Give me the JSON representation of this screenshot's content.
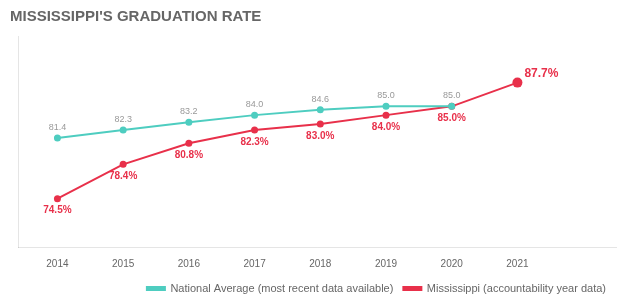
{
  "chart_data": {
    "type": "line",
    "title": "MISSISSIPPI'S GRADUATION RATE",
    "x": [
      2014,
      2015,
      2016,
      2017,
      2018,
      2019,
      2020,
      2021
    ],
    "series": [
      {
        "name": "National Average (most recent data available)",
        "color": "#4ecdc0",
        "values": [
          81.4,
          82.3,
          83.2,
          84.0,
          84.6,
          85.0,
          85.0,
          null
        ],
        "value_labels": [
          "81.4",
          "82.3",
          "83.2",
          "84.0",
          "84.6",
          "85.0",
          "85.0",
          null
        ]
      },
      {
        "name": "Mississippi (accountability year data)",
        "color": "#e8304a",
        "values": [
          74.5,
          78.4,
          80.8,
          82.3,
          83.0,
          84.0,
          85.0,
          87.7
        ],
        "value_labels": [
          "74.5%",
          "78.4%",
          "80.8%",
          "82.3%",
          "83.0%",
          "84.0%",
          "85.0%",
          "87.7%"
        ]
      }
    ],
    "xlim": [
      2013.4,
      2022.5
    ],
    "xticks": [
      2014,
      2015,
      2016,
      2017,
      2018,
      2019,
      2020,
      2021
    ],
    "ylim": [
      69,
      93
    ],
    "grid": false,
    "legend": "lower right",
    "data_labels": true,
    "tick_labels": "x",
    "marker": "circle"
  }
}
